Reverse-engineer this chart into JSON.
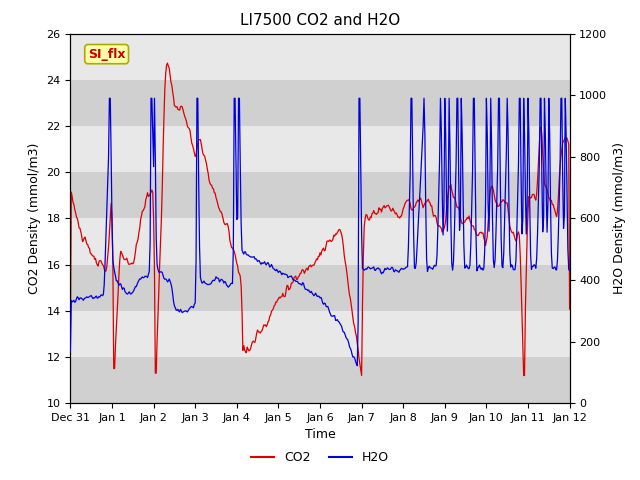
{
  "title": "LI7500 CO2 and H2O",
  "xlabel": "Time",
  "ylabel_left": "CO2 Density (mmol/m3)",
  "ylabel_right": "H2O Density (mmol/m3)",
  "ylim_left": [
    10,
    26
  ],
  "ylim_right": [
    0,
    1200
  ],
  "yticks_left": [
    10,
    12,
    14,
    16,
    18,
    20,
    22,
    24,
    26
  ],
  "yticks_right": [
    0,
    200,
    400,
    600,
    800,
    1000,
    1200
  ],
  "legend_labels": [
    "CO2",
    "H2O"
  ],
  "line_color_co2": "#dd0000",
  "line_color_h2o": "#0000dd",
  "annotation_text": "SI_flx",
  "annotation_color": "#cc0000",
  "annotation_bg": "#ffffaa",
  "annotation_edge": "#aaaa00",
  "bg_color": "#d8d8d8",
  "band_color_dark": "#d0d0d0",
  "band_color_light": "#e8e8e8",
  "title_fontsize": 11,
  "axis_fontsize": 9,
  "tick_fontsize": 8,
  "line_width": 0.9
}
